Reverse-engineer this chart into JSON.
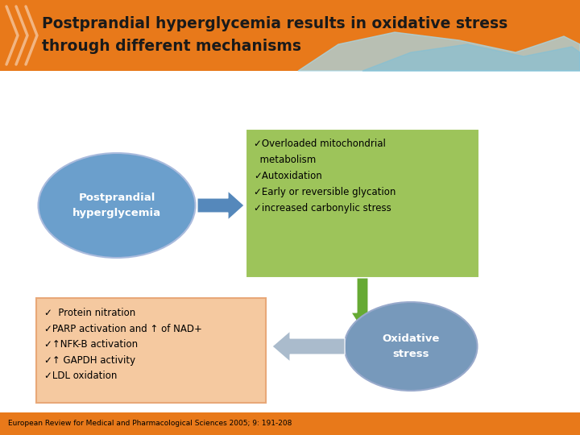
{
  "title_line1": "Postprandial hyperglycemia results in oxidative stress",
  "title_line2": "through different mechanisms",
  "title_bg": "#E8791A",
  "title_color": "#1a1a1a",
  "main_bg": "#FFFFFF",
  "ellipse1_text": "Postprandial\nhyperglycemia",
  "ellipse1_color": "#6B9FCC",
  "ellipse1_text_color": "#FFFFFF",
  "green_box_text": "✓Overloaded mitochondrial\n  metabolism\n✓Autoxidation\n✓Early or reversible glycation\n✓increased carbonylic stress",
  "green_box_color": "#9DC45A",
  "green_box_text_color": "#000000",
  "arrow1_facecolor": "#5588BB",
  "arrow2_facecolor": "#66AA33",
  "arrow3_facecolor": "#AABBCC",
  "ellipse2_text": "Oxidative\nstress",
  "ellipse2_color": "#7799BB",
  "ellipse2_text_color": "#FFFFFF",
  "peach_box_text": "✓  Protein nitration\n✓PARP activation and ↑ of NAD+\n✓↑NFK-B activation\n✓↑ GAPDH activity\n✓LDL oxidation",
  "peach_box_color": "#F5C9A0",
  "peach_box_border": "#E8A878",
  "peach_box_text_color": "#000000",
  "footer_text": "European Review for Medical and Pharmacological Sciences 2005; 9: 191-208",
  "footer_bg": "#E8791A",
  "footer_color": "#000000",
  "wave_color1": "#A8D8E8",
  "wave_color2": "#80C0D8"
}
